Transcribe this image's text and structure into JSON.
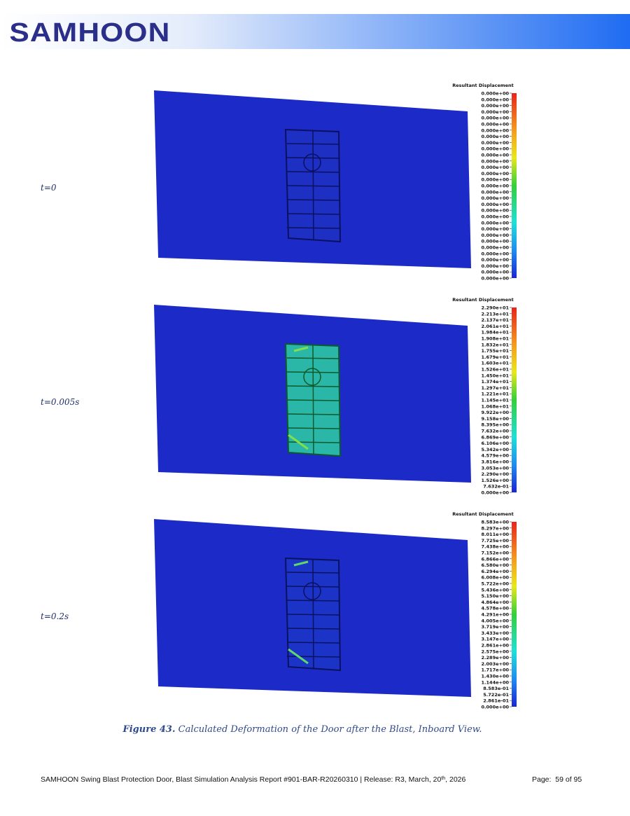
{
  "header": {
    "logo": "SAMHOON"
  },
  "panels": [
    {
      "label": "t=0",
      "legend": {
        "title": "Resultant Displacement",
        "labels": [
          "0.000e+00",
          "0.000e+00",
          "0.000e+00",
          "0.000e+00",
          "0.000e+00",
          "0.000e+00",
          "0.000e+00",
          "0.000e+00",
          "0.000e+00",
          "0.000e+00",
          "0.000e+00",
          "0.000e+00",
          "0.000e+00",
          "0.000e+00",
          "0.000e+00",
          "0.000e+00",
          "0.000e+00",
          "0.000e+00",
          "0.000e+00",
          "0.000e+00",
          "0.000e+00",
          "0.000e+00",
          "0.000e+00",
          "0.000e+00",
          "0.000e+00",
          "0.000e+00",
          "0.000e+00",
          "0.000e+00",
          "0.000e+00",
          "0.000e+00",
          "0.000e+00"
        ]
      }
    },
    {
      "label": "t=0.005s",
      "legend": {
        "title": "Resultant Displacement",
        "labels": [
          "2.290e+01",
          "2.213e+01",
          "2.137e+01",
          "2.061e+01",
          "1.984e+01",
          "1.908e+01",
          "1.832e+01",
          "1.755e+01",
          "1.679e+01",
          "1.603e+01",
          "1.526e+01",
          "1.450e+01",
          "1.374e+01",
          "1.297e+01",
          "1.221e+01",
          "1.145e+01",
          "1.068e+01",
          "9.922e+00",
          "9.158e+00",
          "8.395e+00",
          "7.632e+00",
          "6.869e+00",
          "6.106e+00",
          "5.342e+00",
          "4.579e+00",
          "3.816e+00",
          "3.053e+00",
          "2.290e+00",
          "1.526e+00",
          "7.632e-01",
          "0.000e+00"
        ]
      }
    },
    {
      "label": "t=0.2s",
      "legend": {
        "title": "Resultant Displacement",
        "labels": [
          "8.583e+00",
          "8.297e+00",
          "8.011e+00",
          "7.725e+00",
          "7.438e+00",
          "7.152e+00",
          "6.866e+00",
          "6.580e+00",
          "6.294e+00",
          "6.008e+00",
          "5.722e+00",
          "5.436e+00",
          "5.150e+00",
          "4.864e+00",
          "4.578e+00",
          "4.291e+00",
          "4.005e+00",
          "3.719e+00",
          "3.433e+00",
          "3.147e+00",
          "2.861e+00",
          "2.575e+00",
          "2.289e+00",
          "2.003e+00",
          "1.717e+00",
          "1.430e+00",
          "1.144e+00",
          "8.583e-01",
          "5.722e-01",
          "2.861e-01",
          "0.000e+00"
        ]
      }
    }
  ],
  "caption": {
    "number": "Figure 43.",
    "text": "Calculated Deformation of the Door after the Blast, Inboard View."
  },
  "footer": {
    "report": "SAMHOON Swing Blast Protection Door, Blast Simulation Analysis Report #901-BAR-R20260310 | Release: R3, March, 20",
    "superscript": "th",
    "report_end": ", 2026",
    "page": "Page:  59 of 95"
  }
}
